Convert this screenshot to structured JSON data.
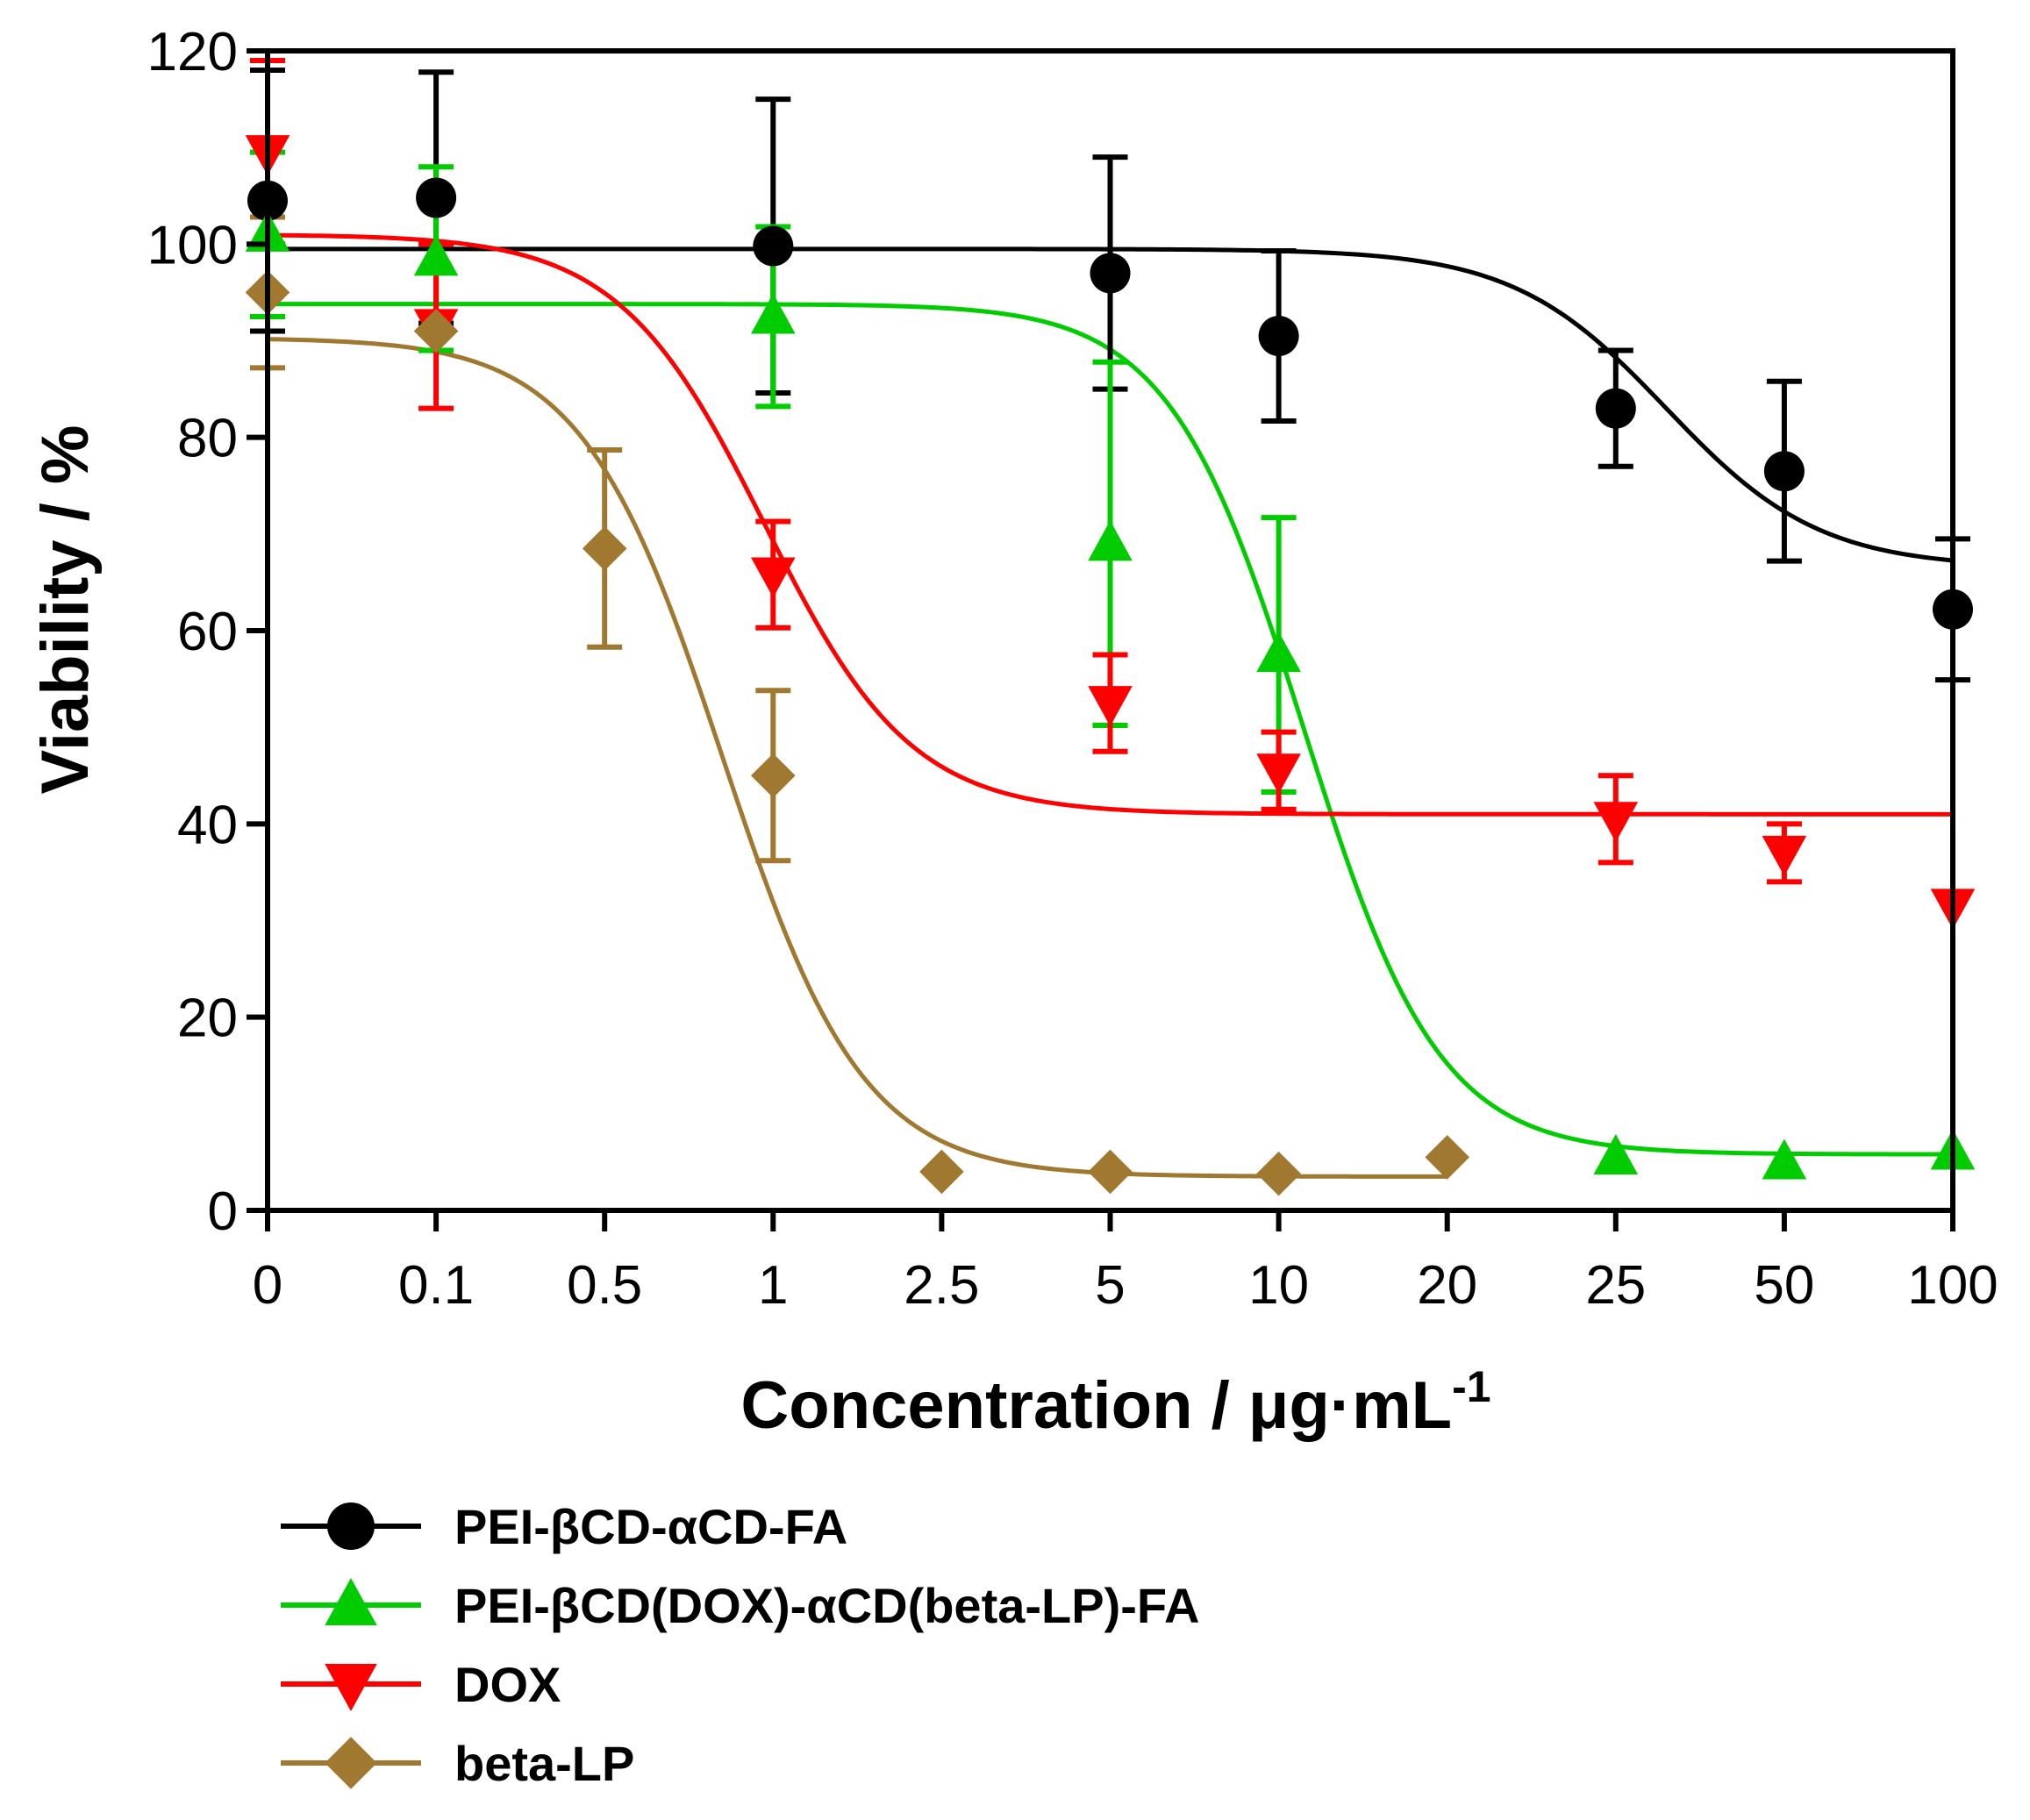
{
  "chart_data": {
    "type": "scatter",
    "title": "",
    "xlabel": "Concentration / μg·mL",
    "xlabel_sup": "-1",
    "ylabel": "Viability / %",
    "ylim": [
      0,
      120
    ],
    "yticks": [
      0,
      20,
      40,
      60,
      80,
      100,
      120
    ],
    "x_scale": "categorical",
    "categories": [
      "0",
      "0.1",
      "0.5",
      "1",
      "2.5",
      "5",
      "10",
      "20",
      "25",
      "50",
      "100"
    ],
    "grid": false,
    "legend_position": "bottom-left",
    "series": [
      {
        "name": "PEI-βCD-αCD-FA",
        "color": "#000000",
        "marker": "circle",
        "points": [
          {
            "cat": "0",
            "y": 104.5,
            "err": 13.5
          },
          {
            "cat": "0.1",
            "y": 104.8,
            "err": 13.0
          },
          {
            "cat": "1",
            "y": 99.8,
            "err": 15.2
          },
          {
            "cat": "5",
            "y": 97.0,
            "err": 12.0
          },
          {
            "cat": "10",
            "y": 90.5,
            "err": 8.8
          },
          {
            "cat": "25",
            "y": 83.0,
            "err": 6.0
          },
          {
            "cat": "50",
            "y": 76.5,
            "err": 9.3
          },
          {
            "cat": "100",
            "y": 62.2,
            "err": 7.3
          }
        ],
        "fit": {
          "top": 99.5,
          "bottom": 66.5,
          "ec50_index": 8.3,
          "slope": 2.2
        }
      },
      {
        "name": "PEI-βCD(DOX)-αCD(beta-LP)-FA",
        "color": "#00cc00",
        "marker": "triangle-up",
        "points": [
          {
            "cat": "0",
            "y": 101.0,
            "err": 8.5
          },
          {
            "cat": "0.1",
            "y": 98.5,
            "err": 9.5
          },
          {
            "cat": "1",
            "y": 92.5,
            "err": 9.3
          },
          {
            "cat": "5",
            "y": 69.0,
            "err": 18.8
          },
          {
            "cat": "10",
            "y": 57.5,
            "err": 14.2
          },
          {
            "cat": "25",
            "y": 5.5,
            "err": 0
          },
          {
            "cat": "50",
            "y": 5.0,
            "err": 0
          },
          {
            "cat": "100",
            "y": 6.0,
            "err": 0
          }
        ],
        "fit": {
          "top": 93.8,
          "bottom": 5.8,
          "ec50_index": 6.15,
          "slope": 2.5
        }
      },
      {
        "name": "DOX",
        "color": "#ff0000",
        "marker": "triangle-down",
        "points": [
          {
            "cat": "0",
            "y": 109.5,
            "err": 9.5
          },
          {
            "cat": "0.1",
            "y": 91.5,
            "err": 8.5
          },
          {
            "cat": "1",
            "y": 65.8,
            "err": 5.5
          },
          {
            "cat": "5",
            "y": 52.5,
            "err": 5.0
          },
          {
            "cat": "10",
            "y": 45.5,
            "err": 4.0
          },
          {
            "cat": "25",
            "y": 40.5,
            "err": 4.5
          },
          {
            "cat": "50",
            "y": 37.0,
            "err": 3.0
          },
          {
            "cat": "100",
            "y": 31.5,
            "err": 0
          }
        ],
        "fit": {
          "top": 101.0,
          "bottom": 41.0,
          "ec50_index": 2.95,
          "slope": 2.3
        }
      },
      {
        "name": "beta-LP",
        "color": "#a07830",
        "marker": "diamond",
        "points": [
          {
            "cat": "0",
            "y": 95.0,
            "err": 7.8
          },
          {
            "cat": "0.1",
            "y": 91.0,
            "err": 0
          },
          {
            "cat": "0.5",
            "y": 68.5,
            "err": 10.2
          },
          {
            "cat": "1",
            "y": 45.0,
            "err": 8.8
          },
          {
            "cat": "2.5",
            "y": 4.0,
            "err": 0
          },
          {
            "cat": "5",
            "y": 4.0,
            "err": 0
          },
          {
            "cat": "10",
            "y": 3.8,
            "err": 0
          },
          {
            "cat": "20",
            "y": 5.5,
            "err": 0
          }
        ],
        "fit": {
          "top": 90.3,
          "bottom": 3.5,
          "ec50_index": 2.7,
          "slope": 2.4,
          "end_index": 7
        }
      }
    ]
  }
}
